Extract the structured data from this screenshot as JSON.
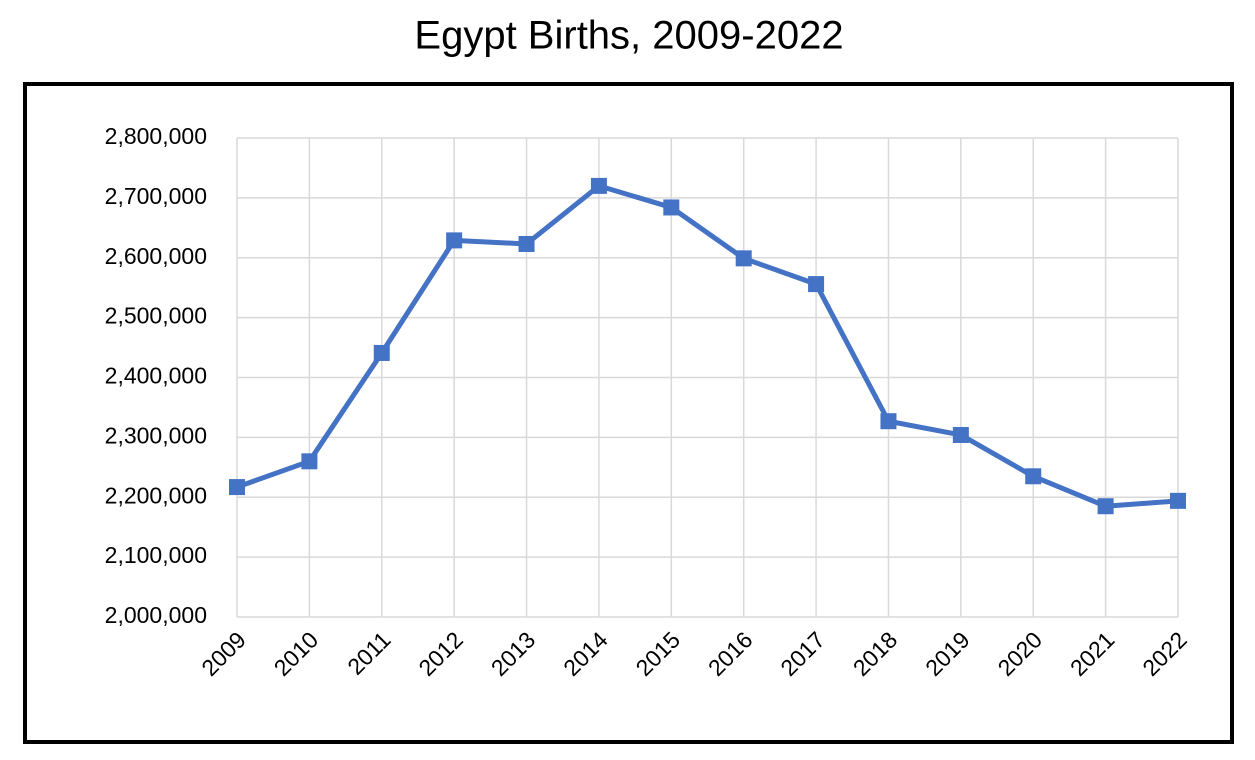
{
  "chart_data": {
    "type": "line",
    "title": "Egypt Births, 2009-2022",
    "categories": [
      "2009",
      "2010",
      "2011",
      "2012",
      "2013",
      "2014",
      "2015",
      "2016",
      "2017",
      "2018",
      "2019",
      "2020",
      "2021",
      "2022"
    ],
    "series": [
      {
        "name": "Births",
        "color": "#4472c4",
        "values": [
          2217000,
          2260000,
          2441000,
          2629000,
          2623000,
          2720000,
          2684000,
          2599000,
          2556000,
          2327000,
          2304000,
          2235000,
          2185000,
          2194000
        ]
      }
    ],
    "ylim": [
      2000000,
      2800000
    ],
    "yticks": [
      {
        "value": 2000000,
        "label": "2,000,000"
      },
      {
        "value": 2100000,
        "label": "2,100,000"
      },
      {
        "value": 2200000,
        "label": "2,200,000"
      },
      {
        "value": 2300000,
        "label": "2,300,000"
      },
      {
        "value": 2400000,
        "label": "2,400,000"
      },
      {
        "value": 2500000,
        "label": "2,500,000"
      },
      {
        "value": 2600000,
        "label": "2,600,000"
      },
      {
        "value": 2700000,
        "label": "2,700,000"
      },
      {
        "value": 2800000,
        "label": "2,800,000"
      }
    ],
    "grid": true
  }
}
